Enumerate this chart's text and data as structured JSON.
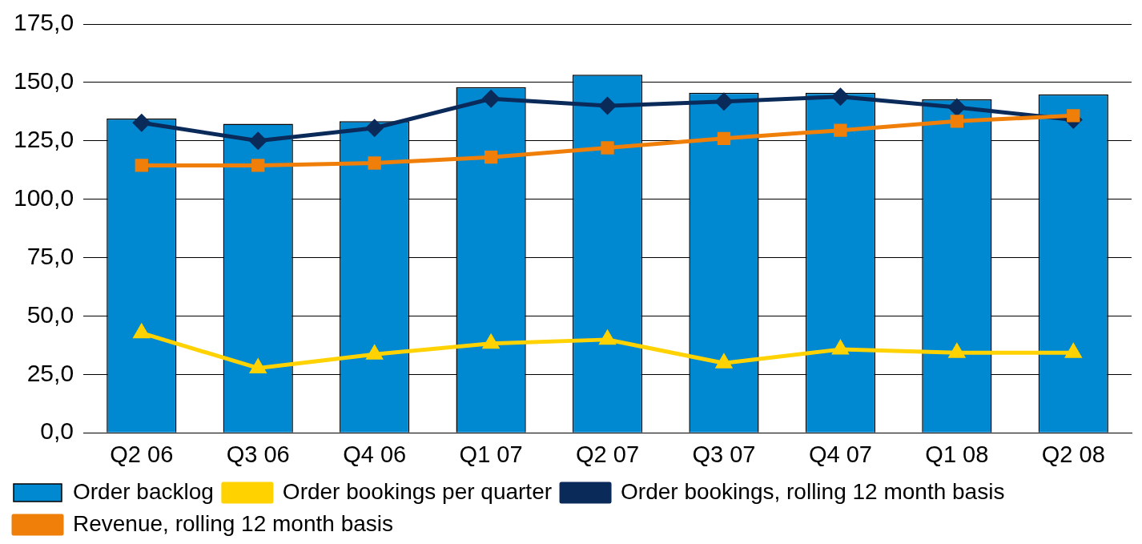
{
  "chart_data": {
    "type": "bar",
    "categories": [
      "Q2 06",
      "Q3 06",
      "Q4 06",
      "Q1 07",
      "Q2 07",
      "Q3 07",
      "Q4 07",
      "Q1 08",
      "Q2 08"
    ],
    "series": [
      {
        "name": "Order backlog",
        "type": "bar",
        "color": "#0088d0",
        "values": [
          134.5,
          132.3,
          133.4,
          148,
          153.3,
          145.6,
          145.6,
          142.8,
          144.9
        ]
      },
      {
        "name": "Order bookings per quarter",
        "type": "line",
        "color": "#ffd200",
        "marker": "triangle",
        "values": [
          42.7,
          27.7,
          33.6,
          38.2,
          39.9,
          29.8,
          35.7,
          34.3,
          34.3
        ]
      },
      {
        "name": "Order bookings, rolling 12 month basis",
        "type": "line",
        "color": "#0a2a5a",
        "marker": "diamond",
        "values": [
          132.7,
          125,
          130.5,
          143,
          140,
          141.8,
          143.9,
          139.3,
          134
        ]
      },
      {
        "name": "Revenue, rolling 12 month basis",
        "type": "line",
        "color": "#f07f0a",
        "marker": "square",
        "values": [
          114.5,
          114.5,
          115.5,
          118,
          122,
          126,
          129.5,
          133.4,
          135.8
        ]
      }
    ],
    "ylim": [
      0,
      175
    ],
    "yticks": [
      {
        "value": 0,
        "label": "0,0"
      },
      {
        "value": 25,
        "label": "25,0"
      },
      {
        "value": 50,
        "label": "50,0"
      },
      {
        "value": 75,
        "label": "75,0"
      },
      {
        "value": 100,
        "label": "100,0"
      },
      {
        "value": 125,
        "label": "125,0"
      },
      {
        "value": 150,
        "label": "150,0"
      },
      {
        "value": 175,
        "label": "175,0"
      }
    ],
    "grid": "y",
    "legend": "bottom"
  }
}
